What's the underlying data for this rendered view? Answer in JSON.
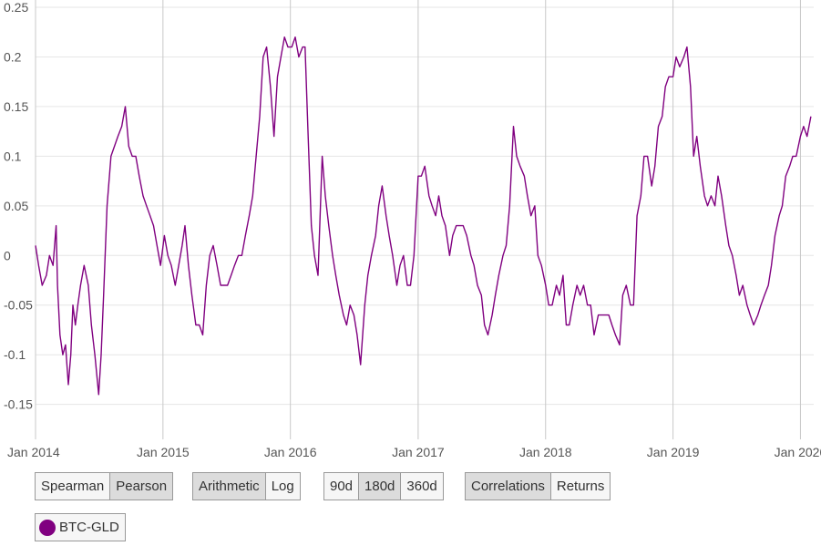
{
  "chart_data": {
    "type": "line",
    "series": [
      {
        "name": "BTC-GLD",
        "color": "#800080",
        "points": [
          [
            "2014-01-01",
            0.01
          ],
          [
            "2014-01-10",
            -0.01
          ],
          [
            "2014-01-20",
            -0.03
          ],
          [
            "2014-02-01",
            -0.02
          ],
          [
            "2014-02-10",
            0.0
          ],
          [
            "2014-02-20",
            -0.01
          ],
          [
            "2014-03-01",
            0.03
          ],
          [
            "2014-03-05",
            -0.03
          ],
          [
            "2014-03-12",
            -0.08
          ],
          [
            "2014-03-20",
            -0.1
          ],
          [
            "2014-03-28",
            -0.09
          ],
          [
            "2014-04-05",
            -0.13
          ],
          [
            "2014-04-12",
            -0.1
          ],
          [
            "2014-04-18",
            -0.05
          ],
          [
            "2014-04-25",
            -0.07
          ],
          [
            "2014-05-02",
            -0.05
          ],
          [
            "2014-05-10",
            -0.03
          ],
          [
            "2014-05-20",
            -0.01
          ],
          [
            "2014-06-01",
            -0.03
          ],
          [
            "2014-06-10",
            -0.07
          ],
          [
            "2014-06-20",
            -0.1
          ],
          [
            "2014-07-01",
            -0.14
          ],
          [
            "2014-07-08",
            -0.1
          ],
          [
            "2014-07-15",
            -0.04
          ],
          [
            "2014-07-25",
            0.05
          ],
          [
            "2014-08-05",
            0.1
          ],
          [
            "2014-08-15",
            0.11
          ],
          [
            "2014-08-25",
            0.12
          ],
          [
            "2014-09-05",
            0.13
          ],
          [
            "2014-09-15",
            0.15
          ],
          [
            "2014-09-25",
            0.11
          ],
          [
            "2014-10-05",
            0.1
          ],
          [
            "2014-10-15",
            0.1
          ],
          [
            "2014-10-25",
            0.08
          ],
          [
            "2014-11-05",
            0.06
          ],
          [
            "2014-11-15",
            0.05
          ],
          [
            "2014-11-25",
            0.04
          ],
          [
            "2014-12-05",
            0.03
          ],
          [
            "2014-12-15",
            0.01
          ],
          [
            "2014-12-25",
            -0.01
          ],
          [
            "2015-01-05",
            0.02
          ],
          [
            "2015-01-15",
            0.0
          ],
          [
            "2015-01-25",
            -0.01
          ],
          [
            "2015-02-05",
            -0.03
          ],
          [
            "2015-02-15",
            -0.01
          ],
          [
            "2015-02-25",
            0.01
          ],
          [
            "2015-03-05",
            0.03
          ],
          [
            "2015-03-15",
            -0.01
          ],
          [
            "2015-03-25",
            -0.04
          ],
          [
            "2015-04-05",
            -0.07
          ],
          [
            "2015-04-15",
            -0.07
          ],
          [
            "2015-04-25",
            -0.08
          ],
          [
            "2015-05-05",
            -0.03
          ],
          [
            "2015-05-15",
            0.0
          ],
          [
            "2015-05-25",
            0.01
          ],
          [
            "2015-06-05",
            -0.01
          ],
          [
            "2015-06-15",
            -0.03
          ],
          [
            "2015-06-25",
            -0.03
          ],
          [
            "2015-07-05",
            -0.03
          ],
          [
            "2015-07-15",
            -0.02
          ],
          [
            "2015-07-25",
            -0.01
          ],
          [
            "2015-08-05",
            0.0
          ],
          [
            "2015-08-15",
            0.0
          ],
          [
            "2015-08-25",
            0.02
          ],
          [
            "2015-09-05",
            0.04
          ],
          [
            "2015-09-15",
            0.06
          ],
          [
            "2015-09-25",
            0.1
          ],
          [
            "2015-10-05",
            0.14
          ],
          [
            "2015-10-15",
            0.2
          ],
          [
            "2015-10-25",
            0.21
          ],
          [
            "2015-11-05",
            0.17
          ],
          [
            "2015-11-15",
            0.12
          ],
          [
            "2015-11-25",
            0.18
          ],
          [
            "2015-12-05",
            0.2
          ],
          [
            "2015-12-15",
            0.22
          ],
          [
            "2015-12-25",
            0.21
          ],
          [
            "2016-01-05",
            0.21
          ],
          [
            "2016-01-15",
            0.22
          ],
          [
            "2016-01-25",
            0.2
          ],
          [
            "2016-02-05",
            0.21
          ],
          [
            "2016-02-12",
            0.21
          ],
          [
            "2016-02-20",
            0.13
          ],
          [
            "2016-03-01",
            0.03
          ],
          [
            "2016-03-10",
            0.0
          ],
          [
            "2016-03-20",
            -0.02
          ],
          [
            "2016-04-01",
            0.1
          ],
          [
            "2016-04-10",
            0.06
          ],
          [
            "2016-04-20",
            0.03
          ],
          [
            "2016-05-01",
            0.0
          ],
          [
            "2016-05-10",
            -0.02
          ],
          [
            "2016-05-20",
            -0.04
          ],
          [
            "2016-06-01",
            -0.06
          ],
          [
            "2016-06-10",
            -0.07
          ],
          [
            "2016-06-20",
            -0.05
          ],
          [
            "2016-07-01",
            -0.06
          ],
          [
            "2016-07-10",
            -0.08
          ],
          [
            "2016-07-20",
            -0.11
          ],
          [
            "2016-08-01",
            -0.05
          ],
          [
            "2016-08-10",
            -0.02
          ],
          [
            "2016-08-20",
            0.0
          ],
          [
            "2016-09-01",
            0.02
          ],
          [
            "2016-09-10",
            0.05
          ],
          [
            "2016-09-20",
            0.07
          ],
          [
            "2016-10-01",
            0.04
          ],
          [
            "2016-10-10",
            0.02
          ],
          [
            "2016-10-20",
            0.0
          ],
          [
            "2016-11-01",
            -0.03
          ],
          [
            "2016-11-10",
            -0.01
          ],
          [
            "2016-11-20",
            0.0
          ],
          [
            "2016-12-01",
            -0.03
          ],
          [
            "2016-12-10",
            -0.03
          ],
          [
            "2016-12-20",
            0.0
          ],
          [
            "2017-01-01",
            0.08
          ],
          [
            "2017-01-10",
            0.08
          ],
          [
            "2017-01-20",
            0.09
          ],
          [
            "2017-02-01",
            0.06
          ],
          [
            "2017-02-10",
            0.05
          ],
          [
            "2017-02-20",
            0.04
          ],
          [
            "2017-03-01",
            0.06
          ],
          [
            "2017-03-10",
            0.04
          ],
          [
            "2017-03-20",
            0.03
          ],
          [
            "2017-04-01",
            0.0
          ],
          [
            "2017-04-10",
            0.02
          ],
          [
            "2017-04-20",
            0.03
          ],
          [
            "2017-05-01",
            0.03
          ],
          [
            "2017-05-10",
            0.03
          ],
          [
            "2017-05-20",
            0.02
          ],
          [
            "2017-06-01",
            0.0
          ],
          [
            "2017-06-10",
            -0.01
          ],
          [
            "2017-06-20",
            -0.03
          ],
          [
            "2017-07-01",
            -0.04
          ],
          [
            "2017-07-10",
            -0.07
          ],
          [
            "2017-07-20",
            -0.08
          ],
          [
            "2017-08-01",
            -0.06
          ],
          [
            "2017-08-10",
            -0.04
          ],
          [
            "2017-08-20",
            -0.02
          ],
          [
            "2017-09-01",
            0.0
          ],
          [
            "2017-09-10",
            0.01
          ],
          [
            "2017-09-20",
            0.05
          ],
          [
            "2017-10-01",
            0.13
          ],
          [
            "2017-10-10",
            0.1
          ],
          [
            "2017-10-20",
            0.09
          ],
          [
            "2017-11-01",
            0.08
          ],
          [
            "2017-11-10",
            0.06
          ],
          [
            "2017-11-20",
            0.04
          ],
          [
            "2017-12-01",
            0.05
          ],
          [
            "2017-12-10",
            0.0
          ],
          [
            "2017-12-20",
            -0.01
          ],
          [
            "2018-01-01",
            -0.03
          ],
          [
            "2018-01-10",
            -0.05
          ],
          [
            "2018-01-20",
            -0.05
          ],
          [
            "2018-02-01",
            -0.03
          ],
          [
            "2018-02-10",
            -0.04
          ],
          [
            "2018-02-20",
            -0.02
          ],
          [
            "2018-03-01",
            -0.07
          ],
          [
            "2018-03-10",
            -0.07
          ],
          [
            "2018-03-20",
            -0.05
          ],
          [
            "2018-04-01",
            -0.03
          ],
          [
            "2018-04-10",
            -0.04
          ],
          [
            "2018-04-20",
            -0.03
          ],
          [
            "2018-05-01",
            -0.05
          ],
          [
            "2018-05-10",
            -0.05
          ],
          [
            "2018-05-20",
            -0.08
          ],
          [
            "2018-06-01",
            -0.06
          ],
          [
            "2018-06-10",
            -0.06
          ],
          [
            "2018-06-20",
            -0.06
          ],
          [
            "2018-07-01",
            -0.06
          ],
          [
            "2018-07-10",
            -0.07
          ],
          [
            "2018-07-20",
            -0.08
          ],
          [
            "2018-08-01",
            -0.09
          ],
          [
            "2018-08-10",
            -0.04
          ],
          [
            "2018-08-20",
            -0.03
          ],
          [
            "2018-09-01",
            -0.05
          ],
          [
            "2018-09-10",
            -0.05
          ],
          [
            "2018-09-20",
            0.04
          ],
          [
            "2018-10-01",
            0.06
          ],
          [
            "2018-10-10",
            0.1
          ],
          [
            "2018-10-20",
            0.1
          ],
          [
            "2018-11-01",
            0.07
          ],
          [
            "2018-11-10",
            0.09
          ],
          [
            "2018-11-20",
            0.13
          ],
          [
            "2018-12-01",
            0.14
          ],
          [
            "2018-12-10",
            0.17
          ],
          [
            "2018-12-20",
            0.18
          ],
          [
            "2019-01-01",
            0.18
          ],
          [
            "2019-01-10",
            0.2
          ],
          [
            "2019-01-20",
            0.19
          ],
          [
            "2019-02-01",
            0.2
          ],
          [
            "2019-02-10",
            0.21
          ],
          [
            "2019-02-20",
            0.17
          ],
          [
            "2019-03-01",
            0.1
          ],
          [
            "2019-03-10",
            0.12
          ],
          [
            "2019-03-20",
            0.09
          ],
          [
            "2019-04-01",
            0.06
          ],
          [
            "2019-04-10",
            0.05
          ],
          [
            "2019-04-20",
            0.06
          ],
          [
            "2019-05-01",
            0.05
          ],
          [
            "2019-05-10",
            0.08
          ],
          [
            "2019-05-20",
            0.06
          ],
          [
            "2019-06-01",
            0.03
          ],
          [
            "2019-06-10",
            0.01
          ],
          [
            "2019-06-20",
            0.0
          ],
          [
            "2019-07-01",
            -0.02
          ],
          [
            "2019-07-10",
            -0.04
          ],
          [
            "2019-07-20",
            -0.03
          ],
          [
            "2019-08-01",
            -0.05
          ],
          [
            "2019-08-10",
            -0.06
          ],
          [
            "2019-08-20",
            -0.07
          ],
          [
            "2019-09-01",
            -0.06
          ],
          [
            "2019-09-10",
            -0.05
          ],
          [
            "2019-09-20",
            -0.04
          ],
          [
            "2019-10-01",
            -0.03
          ],
          [
            "2019-10-10",
            -0.01
          ],
          [
            "2019-10-20",
            0.02
          ],
          [
            "2019-11-01",
            0.04
          ],
          [
            "2019-11-10",
            0.05
          ],
          [
            "2019-11-20",
            0.08
          ],
          [
            "2019-12-01",
            0.09
          ],
          [
            "2019-12-10",
            0.1
          ],
          [
            "2019-12-20",
            0.1
          ],
          [
            "2020-01-01",
            0.12
          ],
          [
            "2020-01-10",
            0.13
          ],
          [
            "2020-01-20",
            0.12
          ],
          [
            "2020-01-31",
            0.14
          ]
        ]
      }
    ],
    "x_ticks": [
      "Jan 2014",
      "Jan 2015",
      "Jan 2016",
      "Jan 2017",
      "Jan 2018",
      "Jan 2019",
      "Jan 2020"
    ],
    "x_tick_dates": [
      "2014-01-01",
      "2015-01-01",
      "2016-01-01",
      "2017-01-01",
      "2018-01-01",
      "2019-01-01",
      "2020-01-01"
    ],
    "y_ticks": [
      "0.25",
      "0.2",
      "0.15",
      "0.1",
      "0.05",
      "0",
      "-0.05",
      "-0.1",
      "-0.15"
    ],
    "y_tick_values": [
      0.25,
      0.2,
      0.15,
      0.1,
      0.05,
      0,
      -0.05,
      -0.1,
      -0.15
    ],
    "ylim": [
      -0.165,
      0.25
    ],
    "xlim": [
      "2014-01-01",
      "2020-02-08"
    ],
    "grid": true,
    "legend_position": "bottom-left"
  },
  "controls": {
    "method": {
      "options": [
        "Spearman",
        "Pearson"
      ],
      "selected": "Pearson"
    },
    "scale": {
      "options": [
        "Arithmetic",
        "Log"
      ],
      "selected": "Arithmetic"
    },
    "window": {
      "options": [
        "90d",
        "180d",
        "360d"
      ],
      "selected": "180d"
    },
    "view": {
      "options": [
        "Correlations",
        "Returns"
      ],
      "selected": "Correlations"
    }
  },
  "legend": {
    "label": "BTC-GLD",
    "color": "#800080"
  }
}
